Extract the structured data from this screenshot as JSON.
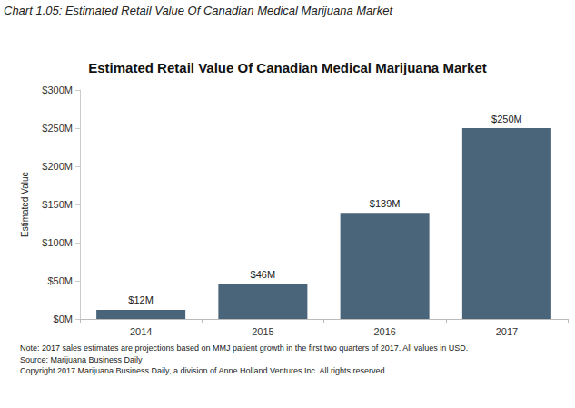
{
  "chart_data": {
    "type": "bar",
    "header": "Chart 1.05: Estimated Retail Value Of Canadian Medical Marijuana Market",
    "title": "Estimated Retail Value Of Canadian Medical Marijuana Market",
    "y_label": "Estimated Value",
    "categories": [
      "2014",
      "2015",
      "2016",
      "2017"
    ],
    "values": [
      12,
      46,
      139,
      250
    ],
    "value_labels": [
      "$12M",
      "$46M",
      "$139M",
      "$250M"
    ],
    "data_labels": true,
    "color": "#4a6479",
    "ylim": [
      0,
      300
    ],
    "yticks": [
      {
        "value": 0,
        "label": "$0M"
      },
      {
        "value": 50,
        "label": "$50M"
      },
      {
        "value": 100,
        "label": "$100M"
      },
      {
        "value": 150,
        "label": "$150M"
      },
      {
        "value": 200,
        "label": "$200M"
      },
      {
        "value": 250,
        "label": "$250M"
      },
      {
        "value": 300,
        "label": "$300M"
      }
    ],
    "grid": false,
    "notes": [
      "Note: 2017 sales estimates are projections based on MMJ patient growth in the first two quarters of 2017. All values in USD.",
      "Source: Marijuana Business Daily",
      "Copyright 2017 Marijuana Business Daily, a division of Anne Holland Ventures Inc. All rights reserved."
    ]
  }
}
